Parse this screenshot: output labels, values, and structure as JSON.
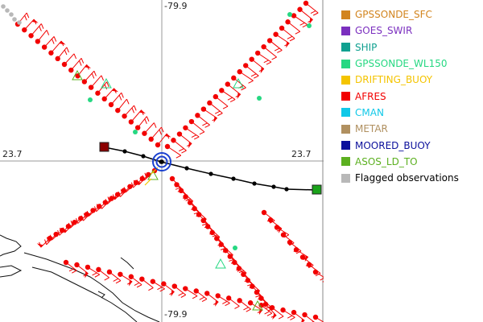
{
  "map": {
    "longitude_top": "-79.9",
    "longitude_bottom": "-79.9",
    "latitude_left": "23.7",
    "latitude_right": "23.7"
  },
  "legend": [
    {
      "label": "GPSSONDE_SFC",
      "color": "#d2841e"
    },
    {
      "label": "GOES_SWIR",
      "color": "#7b2fbf"
    },
    {
      "label": "SHIP",
      "color": "#10a090"
    },
    {
      "label": "GPSSONDE_WL150",
      "color": "#26d882"
    },
    {
      "label": "DRIFTING_BUOY",
      "color": "#f4c400"
    },
    {
      "label": "AFRES",
      "color": "#f20000"
    },
    {
      "label": "CMAN",
      "color": "#10c8e8"
    },
    {
      "label": "METAR",
      "color": "#b09060"
    },
    {
      "label": "MOORED_BUOY",
      "color": "#0c109c"
    },
    {
      "label": "ASOS_LD_TO",
      "color": "#5cb020"
    },
    {
      "label": "Flagged observations",
      "color": "#b8b8b8"
    }
  ]
}
